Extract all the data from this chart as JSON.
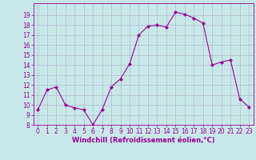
{
  "x": [
    0,
    1,
    2,
    3,
    4,
    5,
    6,
    7,
    8,
    9,
    10,
    11,
    12,
    13,
    14,
    15,
    16,
    17,
    18,
    19,
    20,
    21,
    22,
    23
  ],
  "y": [
    9.5,
    11.5,
    11.8,
    10.0,
    9.7,
    9.5,
    8.0,
    9.5,
    11.8,
    12.6,
    14.1,
    17.0,
    17.9,
    18.0,
    17.8,
    19.3,
    19.1,
    18.7,
    18.2,
    14.0,
    14.3,
    14.5,
    10.6,
    9.8
  ],
  "line_color": "#990099",
  "marker": "D",
  "marker_size": 2,
  "xlabel": "Windchill (Refroidissement éolien,°C)",
  "xlabel_fontsize": 6,
  "ylim": [
    8,
    20
  ],
  "xlim": [
    -0.5,
    23.5
  ],
  "yticks": [
    8,
    9,
    10,
    11,
    12,
    13,
    14,
    15,
    16,
    17,
    18,
    19
  ],
  "xticks": [
    0,
    1,
    2,
    3,
    4,
    5,
    6,
    7,
    8,
    9,
    10,
    11,
    12,
    13,
    14,
    15,
    16,
    17,
    18,
    19,
    20,
    21,
    22,
    23
  ],
  "bg_color": "#c8e8e8",
  "grid_color": "#aaaacc",
  "tick_color": "#990099",
  "tick_fontsize": 5.5,
  "line_width": 0.8,
  "spine_color": "#990099"
}
